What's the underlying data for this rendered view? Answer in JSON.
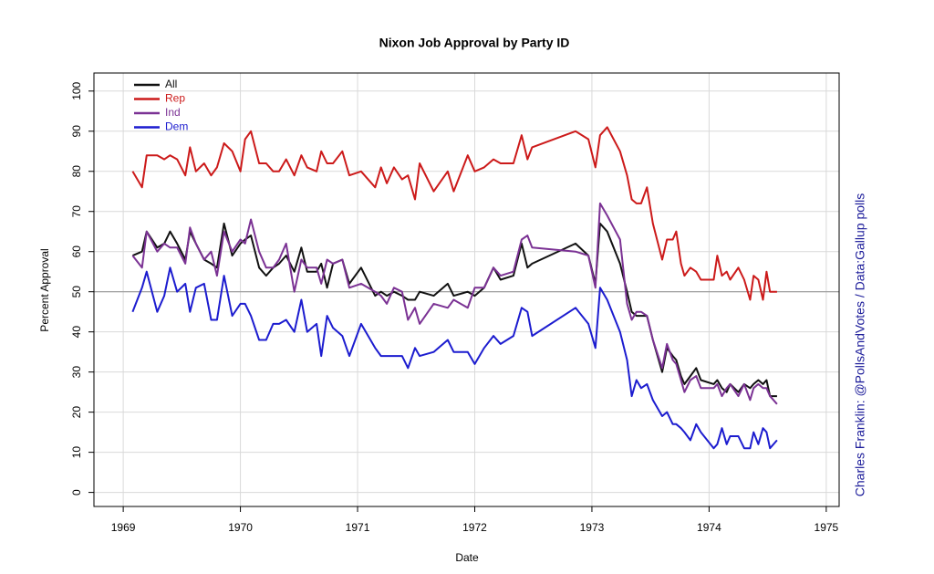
{
  "chart_data": {
    "type": "line",
    "title": "Nixon Job Approval by Party ID",
    "xlabel": "Date",
    "ylabel": "Percent Approval",
    "credit": "Charles Franklin: @PollsAndVotes / Data:Gallup polls",
    "xlim": [
      1968.75,
      1975.11
    ],
    "ylim": [
      -3.5,
      104.5
    ],
    "xticks": [
      1969,
      1970,
      1971,
      1972,
      1973,
      1974,
      1975
    ],
    "yticks": [
      0,
      10,
      20,
      30,
      40,
      50,
      60,
      70,
      80,
      90,
      100
    ],
    "grid": true,
    "hline": 50,
    "legend": "top-left",
    "x": [
      1969.08,
      1969.16,
      1969.2,
      1969.29,
      1969.35,
      1969.4,
      1969.46,
      1969.53,
      1969.57,
      1969.62,
      1969.69,
      1969.75,
      1969.8,
      1969.86,
      1969.93,
      1970.0,
      1970.04,
      1970.09,
      1970.16,
      1970.22,
      1970.28,
      1970.33,
      1970.39,
      1970.46,
      1970.52,
      1970.57,
      1970.65,
      1970.69,
      1970.74,
      1970.79,
      1970.87,
      1970.93,
      1971.03,
      1971.15,
      1971.2,
      1971.25,
      1971.31,
      1971.38,
      1971.43,
      1971.49,
      1971.53,
      1971.65,
      1971.77,
      1971.82,
      1971.94,
      1972.0,
      1972.08,
      1972.16,
      1972.22,
      1972.33,
      1972.4,
      1972.45,
      1972.49,
      1972.86,
      1972.97,
      1973.03,
      1973.07,
      1973.13,
      1973.24,
      1973.3,
      1973.34,
      1973.38,
      1973.42,
      1973.47,
      1973.52,
      1973.6,
      1973.64,
      1973.69,
      1973.72,
      1973.76,
      1973.79,
      1973.84,
      1973.89,
      1973.93,
      1974.04,
      1974.07,
      1974.11,
      1974.15,
      1974.18,
      1974.25,
      1974.3,
      1974.35,
      1974.38,
      1974.42,
      1974.46,
      1974.49,
      1974.52,
      1974.58
    ],
    "series": [
      {
        "name": "All",
        "color": "#111111",
        "values": [
          59,
          60,
          65,
          61,
          62,
          65,
          62,
          58,
          65,
          62,
          58,
          57,
          56,
          67,
          59,
          62,
          63,
          64,
          56,
          54,
          56,
          57,
          59,
          55,
          61,
          55,
          55,
          57,
          51,
          57,
          58,
          52,
          56,
          49,
          50,
          49,
          50,
          49,
          48,
          48,
          50,
          49,
          52,
          49,
          50,
          49,
          51,
          56,
          53,
          54,
          62,
          56,
          57,
          62,
          59,
          52,
          67,
          65,
          57,
          50,
          45,
          44,
          44,
          44,
          38,
          30,
          36,
          34,
          33,
          29,
          27,
          29,
          31,
          28,
          27,
          28,
          26,
          25,
          27,
          25,
          27,
          26,
          27,
          28,
          27,
          28,
          24,
          24
        ]
      },
      {
        "name": "Rep",
        "color": "#cc1a1a",
        "values": [
          80,
          76,
          84,
          84,
          83,
          84,
          83,
          79,
          86,
          80,
          82,
          79,
          81,
          87,
          85,
          80,
          88,
          90,
          82,
          82,
          80,
          80,
          83,
          79,
          84,
          81,
          80,
          85,
          82,
          82,
          85,
          79,
          80,
          76,
          81,
          77,
          81,
          78,
          79,
          73,
          82,
          75,
          80,
          75,
          84,
          80,
          81,
          83,
          82,
          82,
          89,
          83,
          86,
          90,
          88,
          81,
          89,
          91,
          85,
          79,
          73,
          72,
          72,
          76,
          67,
          58,
          63,
          63,
          65,
          57,
          54,
          56,
          55,
          53,
          53,
          59,
          54,
          55,
          53,
          56,
          53,
          48,
          54,
          53,
          48,
          55,
          50,
          50
        ]
      },
      {
        "name": "Ind",
        "color": "#7b3294",
        "values": [
          59,
          56,
          65,
          60,
          62,
          61,
          61,
          57,
          66,
          62,
          58,
          60,
          54,
          65,
          60,
          63,
          62,
          68,
          60,
          56,
          56,
          58,
          62,
          50,
          58,
          56,
          56,
          52,
          58,
          57,
          58,
          51,
          52,
          50,
          49,
          47,
          51,
          50,
          43,
          46,
          42,
          47,
          46,
          48,
          46,
          51,
          51,
          56,
          54,
          55,
          63,
          64,
          61,
          60,
          59,
          51,
          72,
          69,
          63,
          47,
          43,
          45,
          45,
          44,
          38,
          31,
          37,
          33,
          32,
          28,
          25,
          28,
          29,
          26,
          26,
          27,
          24,
          26,
          27,
          24,
          27,
          23,
          26,
          27,
          26,
          26,
          24,
          22
        ]
      },
      {
        "name": "Dem",
        "color": "#1c1ccf",
        "values": [
          45,
          51,
          55,
          45,
          49,
          56,
          50,
          52,
          45,
          51,
          52,
          43,
          43,
          54,
          44,
          47,
          47,
          44,
          38,
          38,
          42,
          42,
          43,
          40,
          48,
          40,
          42,
          34,
          44,
          41,
          39,
          34,
          42,
          36,
          34,
          34,
          34,
          34,
          31,
          36,
          34,
          35,
          38,
          35,
          35,
          32,
          36,
          39,
          37,
          39,
          46,
          45,
          39,
          46,
          42,
          36,
          51,
          48,
          40,
          33,
          24,
          28,
          26,
          27,
          23,
          19,
          20,
          17,
          17,
          16,
          15,
          13,
          17,
          15,
          11,
          12,
          16,
          12,
          14,
          14,
          11,
          11,
          15,
          12,
          16,
          15,
          11,
          13
        ]
      }
    ]
  }
}
